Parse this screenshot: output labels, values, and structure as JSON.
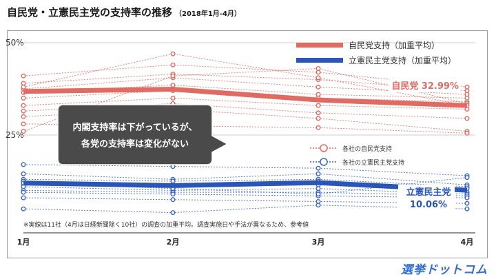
{
  "header": {
    "title": "自民党・立憲民主党の支持率の推移",
    "subtitle": "（2018年1月-4月）"
  },
  "logo": {
    "text": "選挙ドットコム"
  },
  "chart_data": {
    "type": "line",
    "title": "自民党・立憲民主党の支持率の推移",
    "categories": [
      "1月",
      "2月",
      "3月",
      "4月"
    ],
    "ylim": [
      0,
      50
    ],
    "ytick_labels": [
      "50%",
      "25%"
    ],
    "ytick_values": [
      50,
      25
    ],
    "grid": true,
    "colors": {
      "ldp": "#e06b62",
      "cdp": "#3a66c4",
      "cdp_dark": "#2c55b8"
    },
    "series": [
      {
        "name": "自民党支持（加重平均）",
        "key": "ldp",
        "values": [
          36.8,
          37.4,
          34.5,
          32.99
        ]
      },
      {
        "name": "立憲民主党支持（加重平均）",
        "key": "cdp",
        "values": [
          12.0,
          11.3,
          12.1,
          10.06
        ]
      }
    ],
    "per_company": {
      "ldp": [
        [
          41.0,
          44.0,
          42.0,
          38.0
        ],
        [
          39.0,
          41.5,
          40.0,
          37.0
        ],
        [
          37.5,
          40.5,
          38.0,
          36.0
        ],
        [
          36.5,
          38.5,
          36.0,
          35.0
        ],
        [
          35.0,
          37.0,
          35.0,
          34.0
        ],
        [
          33.0,
          35.0,
          33.0,
          32.0
        ],
        [
          31.5,
          33.5,
          31.0,
          29.5
        ],
        [
          30.0,
          32.0,
          29.5,
          26.0
        ],
        [
          28.0,
          27.5,
          27.0,
          25.5
        ],
        [
          26.0,
          41.0,
          43.0,
          33.5
        ],
        [
          38.0,
          47.0,
          40.5,
          33.0
        ]
      ],
      "cdp": [
        [
          17.0,
          16.5,
          16.0,
          14.0
        ],
        [
          14.5,
          13.0,
          14.5,
          11.5
        ],
        [
          13.0,
          12.5,
          13.0,
          11.0
        ],
        [
          12.5,
          11.5,
          12.5,
          10.5
        ],
        [
          11.5,
          11.0,
          11.5,
          9.5
        ],
        [
          11.0,
          10.0,
          10.5,
          9.0
        ],
        [
          10.0,
          9.5,
          9.5,
          8.5
        ],
        [
          9.5,
          9.0,
          8.5,
          8.0
        ],
        [
          8.0,
          7.5,
          7.0,
          6.5
        ],
        [
          5.0,
          4.0,
          6.0,
          5.0
        ],
        [
          12.0,
          10.5,
          9.0,
          13.5
        ]
      ]
    },
    "legend": {
      "placement": "top-right",
      "ldp_label": "自民党支持（加重平均）",
      "cdp_label": "立憲民主党支持（加重平均）",
      "company_ldp_label": "各社の自民党支持",
      "company_cdp_label": "各社の立憲民主党支持"
    },
    "annotations": {
      "ldp_end_label": "自民党 32.99%",
      "cdp_end_label_line1": "立憲民主党",
      "cdp_end_label_line2": "10.06%",
      "callout_line1": "内閣支持率は下がっているが、",
      "callout_line2": "各党の支持率は変化がない",
      "footnote": "※実線は11社（4月は日経新聞除く10社）の調査の加重平均。調査実施日や手法が異なるため、参考値"
    }
  }
}
